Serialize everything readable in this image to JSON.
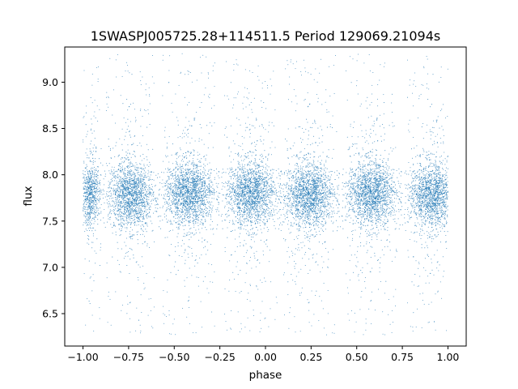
{
  "chart_data": {
    "type": "scatter",
    "title": "1SWASPJ005725.28+114511.5 Period 129069.21094s",
    "xlabel": "phase",
    "ylabel": "flux",
    "xlim": [
      -1.1,
      1.1
    ],
    "ylim": [
      6.15,
      9.38
    ],
    "grid": false,
    "legend": "none",
    "point_color": "#1f77b4",
    "x_ticks": [
      {
        "value": -1.0,
        "label": "−1.00"
      },
      {
        "value": -0.75,
        "label": "−0.75"
      },
      {
        "value": -0.5,
        "label": "−0.50"
      },
      {
        "value": -0.25,
        "label": "−0.25"
      },
      {
        "value": 0.0,
        "label": "0.00"
      },
      {
        "value": 0.25,
        "label": "0.25"
      },
      {
        "value": 0.5,
        "label": "0.50"
      },
      {
        "value": 0.75,
        "label": "0.75"
      },
      {
        "value": 1.0,
        "label": "1.00"
      }
    ],
    "y_ticks": [
      {
        "value": 6.5,
        "label": "6.5"
      },
      {
        "value": 7.0,
        "label": "7.0"
      },
      {
        "value": 7.5,
        "label": "7.5"
      },
      {
        "value": 8.0,
        "label": "8.0"
      },
      {
        "value": 8.5,
        "label": "8.5"
      },
      {
        "value": 9.0,
        "label": "9.0"
      }
    ],
    "clusters": [
      {
        "x_center": -0.96,
        "x_halfwidth": 0.05,
        "y_center": 7.78,
        "y_spread": 0.17
      },
      {
        "x_center": -0.74,
        "x_halfwidth": 0.11,
        "y_center": 7.78,
        "y_spread": 0.17
      },
      {
        "x_center": -0.42,
        "x_halfwidth": 0.12,
        "y_center": 7.8,
        "y_spread": 0.17
      },
      {
        "x_center": -0.08,
        "x_halfwidth": 0.12,
        "y_center": 7.8,
        "y_spread": 0.17
      },
      {
        "x_center": 0.24,
        "x_halfwidth": 0.12,
        "y_center": 7.78,
        "y_spread": 0.17
      },
      {
        "x_center": 0.58,
        "x_halfwidth": 0.12,
        "y_center": 7.8,
        "y_spread": 0.17
      },
      {
        "x_center": 0.91,
        "x_halfwidth": 0.11,
        "y_center": 7.78,
        "y_spread": 0.17
      }
    ]
  }
}
